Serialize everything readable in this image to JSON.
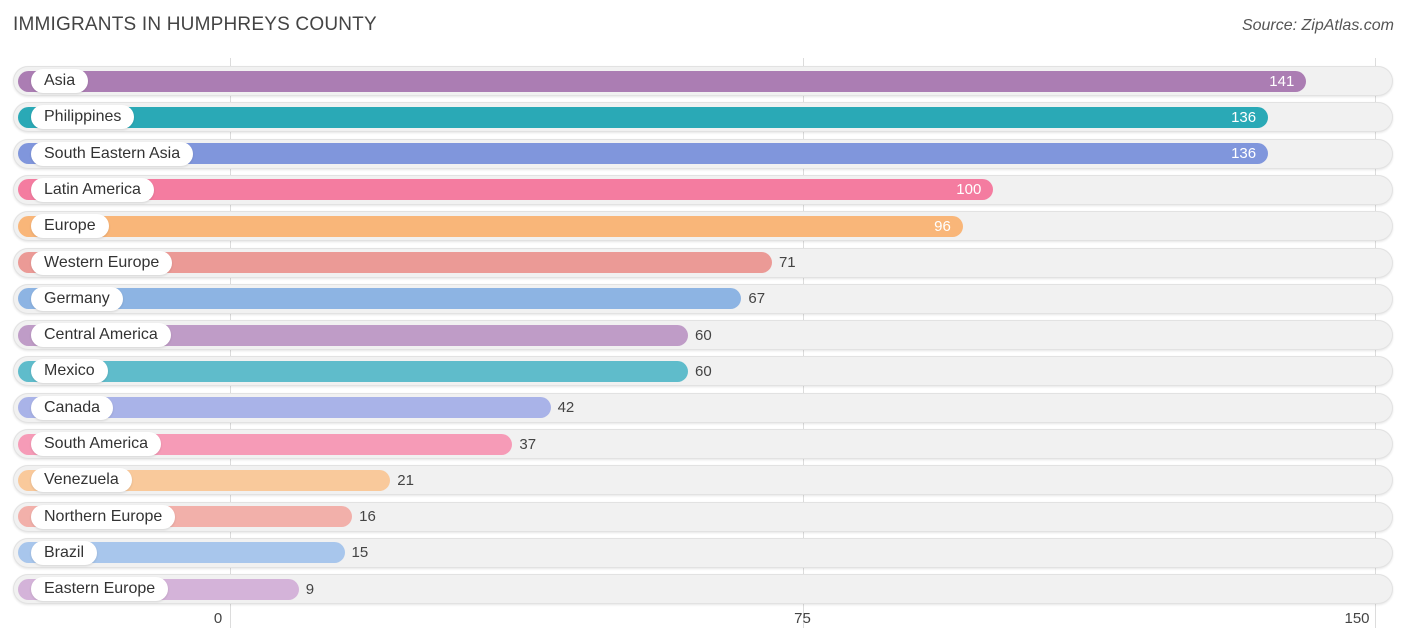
{
  "header": {
    "title": "IMMIGRANTS IN HUMPHREYS COUNTY",
    "source": "Source: ZipAtlas.com"
  },
  "chart_data": {
    "type": "bar",
    "orientation": "horizontal",
    "title": "IMMIGRANTS IN HUMPHREYS COUNTY",
    "categories": [
      "Asia",
      "Philippines",
      "South Eastern Asia",
      "Latin America",
      "Europe",
      "Western Europe",
      "Germany",
      "Central America",
      "Mexico",
      "Canada",
      "South America",
      "Venezuela",
      "Northern Europe",
      "Brazil",
      "Eastern Europe"
    ],
    "values": [
      141,
      136,
      136,
      100,
      96,
      71,
      67,
      60,
      60,
      42,
      37,
      21,
      16,
      15,
      9
    ],
    "colors": [
      "#ab7db3",
      "#2aa9b6",
      "#8096dc",
      "#f47ca0",
      "#f9b679",
      "#eb9a96",
      "#8db4e3",
      "#bf9cc7",
      "#5fbccb",
      "#a9b3e8",
      "#f69bb7",
      "#f9c99b",
      "#f2b0aa",
      "#a8c6ec",
      "#d4b3d9"
    ],
    "xlim": [
      0,
      150
    ],
    "xticks": [
      "0",
      "75",
      "150"
    ],
    "grid": true
  }
}
